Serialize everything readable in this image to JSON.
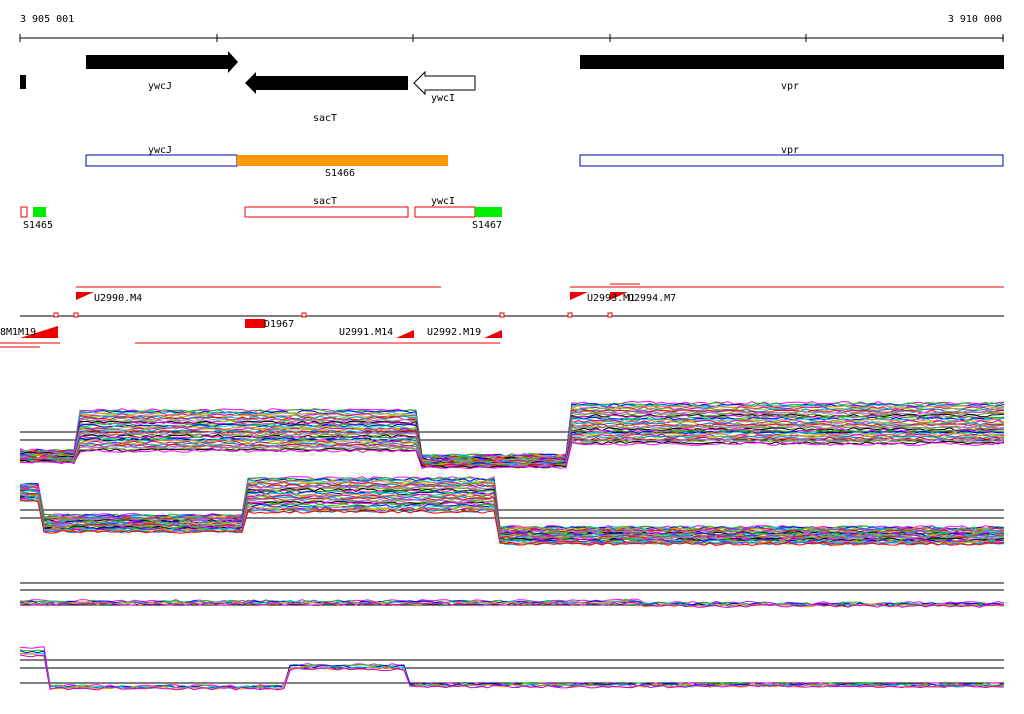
{
  "axis": {
    "start": "3 905 001",
    "end": "3 910 000"
  },
  "genes": {
    "ywcJ": "ywcJ",
    "sacT": "sacT",
    "ywcI": "ywcI",
    "vpr": "vpr"
  },
  "operons": {
    "ywcJ": "ywcJ",
    "vpr": "vpr",
    "S1466": "S1466"
  },
  "segments": {
    "sacT": "sacT",
    "ywcI": "ywcI",
    "S1465": "S1465",
    "S1467": "S1467"
  },
  "transcripts": {
    "U2990": "U2990.M4",
    "U2993": "U2993.M1",
    "U2994": "U2994.M7",
    "D1967": "D1967",
    "U2991": "U2991.M14",
    "U2992": "U2992.M19",
    "left": "8M1M19"
  }
}
